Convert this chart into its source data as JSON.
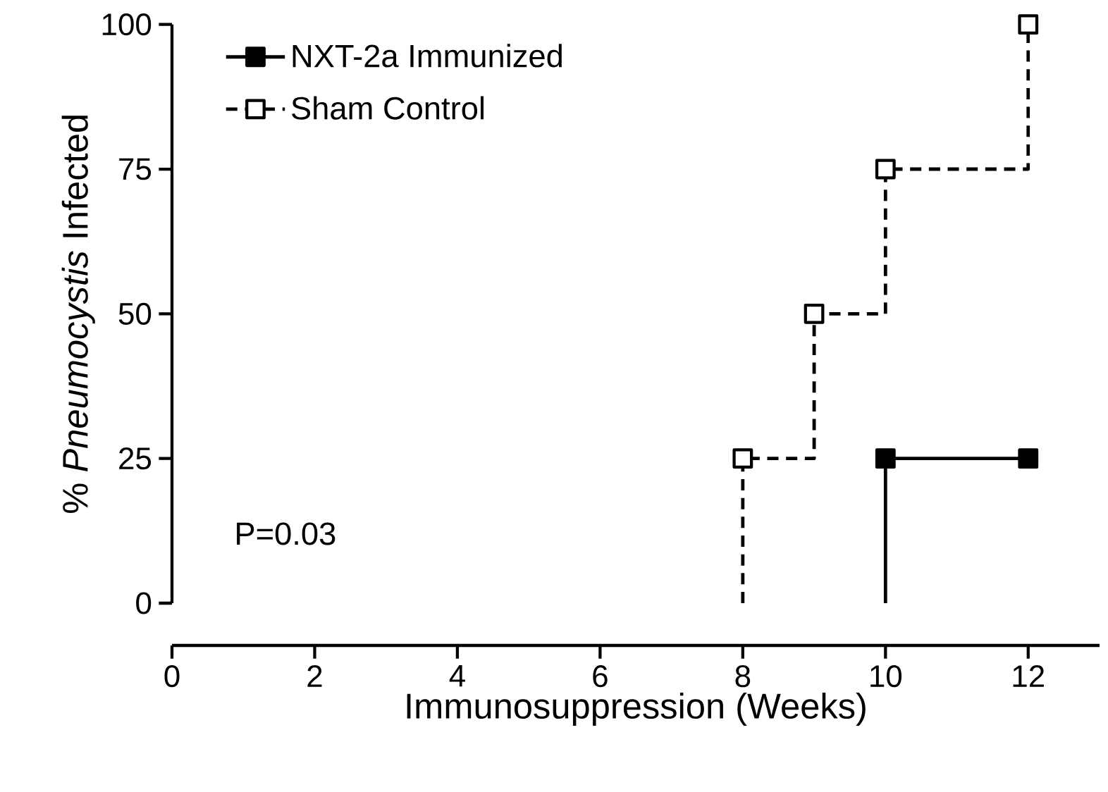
{
  "chart_data": {
    "type": "step",
    "xlabel": "Immunosuppression (Weeks)",
    "ylabel": "% *Pneumocystis* Infected",
    "xlim": [
      0,
      13
    ],
    "ylim": [
      0,
      100
    ],
    "xticks": [
      0,
      2,
      4,
      6,
      8,
      10,
      12
    ],
    "yticks": [
      0,
      25,
      50,
      75,
      100
    ],
    "grid": false,
    "legend": "top left",
    "marker": "square",
    "series": [
      {
        "name": "NXT-2a Immunized",
        "color": "#000000",
        "line_style": "solid",
        "x": [
          10,
          10,
          12
        ],
        "values": [
          0,
          25,
          25
        ]
      },
      {
        "name": "Sham Control",
        "color": "#000000",
        "line_style": "dashed",
        "x": [
          8,
          8,
          9,
          10,
          12
        ],
        "values": [
          0,
          25,
          50,
          75,
          100
        ]
      }
    ],
    "annotations": [
      "P=0.03"
    ]
  }
}
